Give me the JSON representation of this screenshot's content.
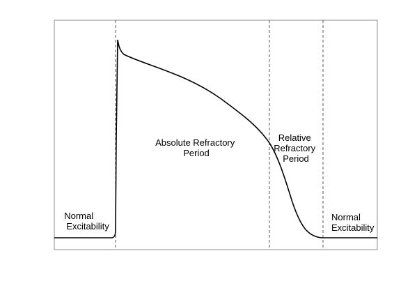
{
  "diagram": {
    "labels": {
      "normal_left": [
        "Normal",
        "Excitability"
      ],
      "absolute": [
        "Absolute Refractory",
        "Period"
      ],
      "relative": [
        "Relative",
        "Refractory",
        "Period"
      ],
      "normal_right": [
        "Normal",
        "Excitability"
      ]
    }
  },
  "colors": {
    "trace": "#000000",
    "frame": "#8c8c8c",
    "divider": "#555555",
    "background": "#ffffff"
  }
}
